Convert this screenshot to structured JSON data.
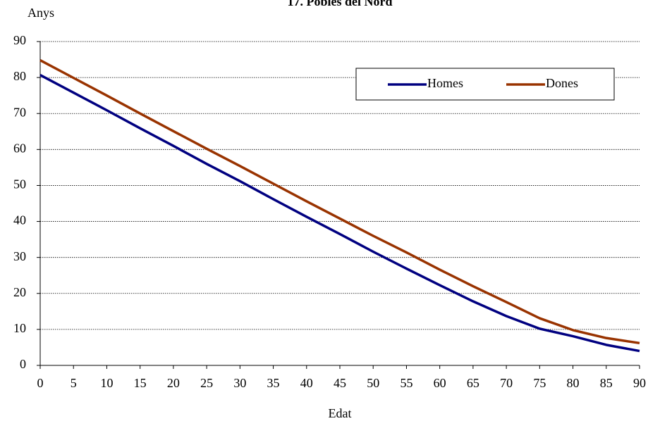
{
  "chart_data": {
    "type": "line",
    "title": "17. Pobles del Nord",
    "y_label": "Anys",
    "x_label": "Edat",
    "x": [
      0,
      5,
      10,
      15,
      20,
      25,
      30,
      35,
      40,
      45,
      50,
      55,
      60,
      65,
      70,
      75,
      80,
      85,
      90
    ],
    "series": [
      {
        "name": "Homes",
        "color": "#000080",
        "values": [
          80.7,
          75.8,
          70.9,
          65.9,
          61,
          56,
          51.2,
          46.2,
          41.3,
          36.5,
          31.6,
          26.9,
          22.3,
          17.8,
          13.7,
          10.2,
          8.1,
          5.7,
          4.0
        ]
      },
      {
        "name": "Dones",
        "color": "#993300",
        "values": [
          84.8,
          79.9,
          75,
          70,
          65.1,
          60.2,
          55.4,
          50.5,
          45.6,
          40.8,
          36,
          31.4,
          26.6,
          22,
          17.6,
          13.1,
          9.8,
          7.6,
          6.2
        ]
      }
    ],
    "xlim": [
      0,
      90
    ],
    "xticks": [
      0,
      5,
      10,
      15,
      20,
      25,
      30,
      35,
      40,
      45,
      50,
      55,
      60,
      65,
      70,
      75,
      80,
      85,
      90
    ],
    "ylim": [
      0,
      90
    ],
    "yticks": [
      0,
      10,
      20,
      30,
      40,
      50,
      60,
      70,
      80,
      90
    ],
    "grid": true
  }
}
